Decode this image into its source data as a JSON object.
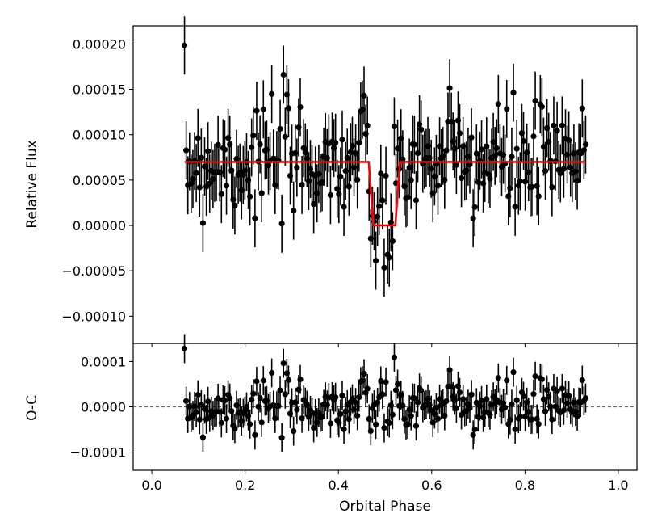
{
  "chart_data": [
    {
      "panel": "flux",
      "type": "scatter",
      "xlabel": "",
      "ylabel": "Relative Flux",
      "xlim": [
        -0.04,
        1.04
      ],
      "ylim": [
        -0.00013,
        0.00022
      ],
      "xticks": [
        0.0,
        0.2,
        0.4,
        0.6,
        0.8,
        1.0
      ],
      "yticks": [
        -0.0001,
        -5e-05,
        0.0,
        5e-05,
        0.0001,
        0.00015,
        0.0002
      ],
      "ytick_labels": [
        "−0.00010",
        "−0.00005",
        "0.00000",
        "0.00005",
        "0.00010",
        "0.00015",
        "0.00020"
      ],
      "point_color": "#000000",
      "error_bar": 3.2e-05,
      "x_range": [
        0.07,
        0.93
      ],
      "points": 240,
      "model": {
        "color": "#ff0000",
        "baseline": 7e-05,
        "depth_level": 0.0,
        "ingress_start": 0.465,
        "ingress_end": 0.475,
        "egress_start": 0.522,
        "egress_end": 0.532
      }
    },
    {
      "panel": "residuals",
      "type": "scatter",
      "xlabel": "Orbital Phase",
      "ylabel": "O-C",
      "xlim": [
        -0.04,
        1.04
      ],
      "ylim": [
        -0.00014,
        0.00014
      ],
      "xticks": [
        0.0,
        0.2,
        0.4,
        0.6,
        0.8,
        1.0
      ],
      "xtick_labels": [
        "0.0",
        "0.2",
        "0.4",
        "0.6",
        "0.8",
        "1.0"
      ],
      "yticks": [
        -0.0001,
        0.0,
        0.0001
      ],
      "ytick_labels": [
        "−0.0001",
        "0.0000",
        "0.0001"
      ],
      "zero_line": {
        "value": 0.0,
        "style": "dashed",
        "color": "#666666"
      },
      "point_color": "#000000",
      "error_bar": 3.2e-05
    }
  ]
}
